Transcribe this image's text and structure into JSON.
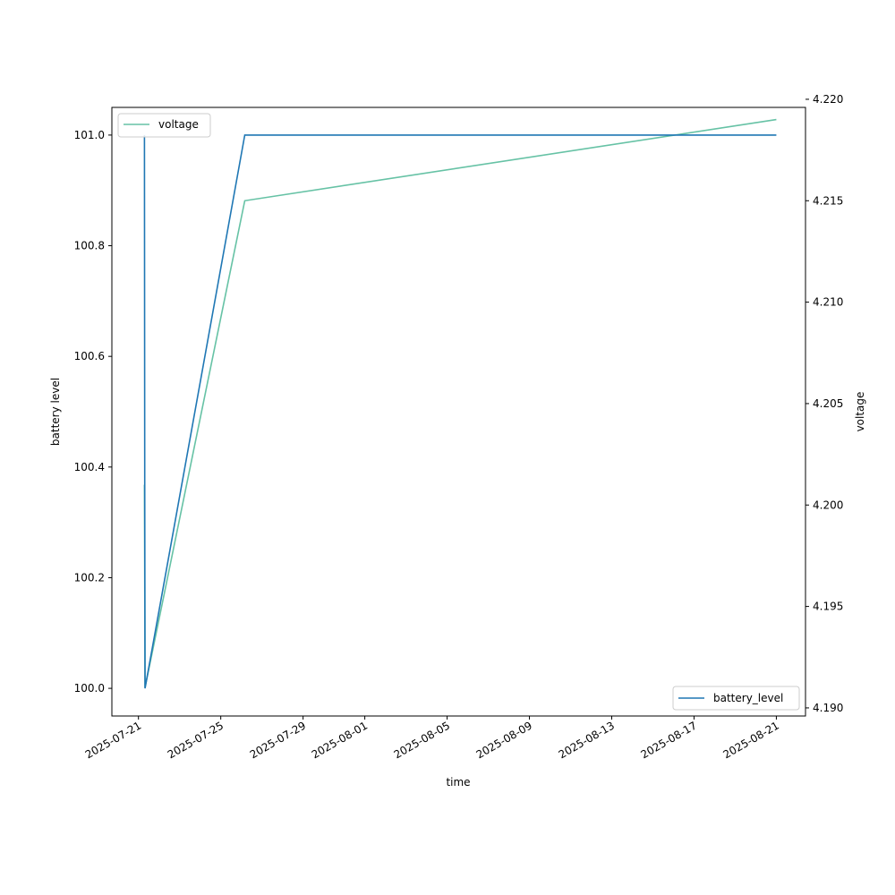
{
  "chart_data": {
    "type": "line",
    "title": "",
    "xlabel": "time",
    "ylabel": "battery level",
    "y2label": "voltage",
    "x_ticks": [
      "2025-07-21",
      "2025-07-25",
      "2025-07-29",
      "2025-08-01",
      "2025-08-05",
      "2025-08-09",
      "2025-08-13",
      "2025-08-17",
      "2025-08-21"
    ],
    "xlim": [
      "2025-07-19T17:00",
      "2025-08-22T10:00"
    ],
    "ylim": [
      99.95,
      101.05
    ],
    "y_ticks": [
      "100.0",
      "100.2",
      "100.4",
      "100.6",
      "100.8",
      "101.0"
    ],
    "y2lim": [
      4.1896,
      4.2196
    ],
    "y2_ticks": [
      "4.190",
      "4.195",
      "4.200",
      "4.205",
      "4.210",
      "4.215",
      "4.220"
    ],
    "grid": false,
    "series": [
      {
        "name": "battery_level",
        "axis": "left",
        "color": "#1f77b4",
        "legend_position": "lower-right",
        "points": [
          {
            "x": "2025-07-21T07:00",
            "y": 101
          },
          {
            "x": "2025-07-21T07:20",
            "y": 100.36
          },
          {
            "x": "2025-07-21T07:40",
            "y": 100
          },
          {
            "x": "2025-07-26T04:00",
            "y": 101
          },
          {
            "x": "2025-08-21T00:00",
            "y": 101
          }
        ]
      },
      {
        "name": "voltage",
        "axis": "right",
        "color": "#66c2a5",
        "legend_position": "upper-left",
        "points": [
          {
            "x": "2025-07-21T07:00",
            "y": 4.201
          },
          {
            "x": "2025-07-21T07:40",
            "y": 4.191
          },
          {
            "x": "2025-07-26T04:00",
            "y": 4.215
          },
          {
            "x": "2025-08-21T00:00",
            "y": 4.219
          }
        ]
      }
    ]
  }
}
